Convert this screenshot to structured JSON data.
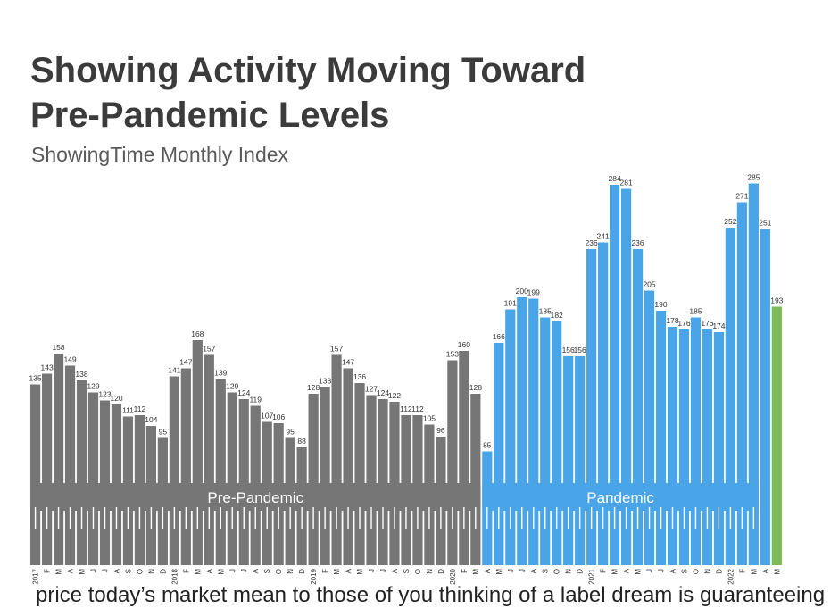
{
  "title_line1": "Showing Activity Moving Toward",
  "title_line2": "Pre-Pandemic Levels",
  "subtitle": "ShowingTime Monthly Index",
  "caption": "price today’s market mean to those of you thinking of a label dream is guaranteeing",
  "colors": {
    "pre": "#767676",
    "pandemic": "#4aa5e8",
    "latest": "#7dbb57"
  },
  "chart_data": {
    "type": "bar",
    "title": "Showing Activity Moving Toward Pre-Pandemic Levels",
    "subtitle": "ShowingTime Monthly Index",
    "categories": [
      "2017",
      "F",
      "M",
      "A",
      "M",
      "J",
      "J",
      "A",
      "S",
      "O",
      "N",
      "D",
      "2018",
      "F",
      "M",
      "A",
      "M",
      "J",
      "J",
      "A",
      "S",
      "O",
      "N",
      "D",
      "2019",
      "F",
      "M",
      "A",
      "M",
      "J",
      "J",
      "A",
      "S",
      "O",
      "N",
      "D",
      "2020",
      "F",
      "M",
      "A",
      "M",
      "J",
      "J",
      "A",
      "S",
      "O",
      "N",
      "D",
      "2021",
      "F",
      "M",
      "A",
      "M",
      "J",
      "J",
      "A",
      "S",
      "O",
      "N",
      "D",
      "2022",
      "F",
      "M",
      "A",
      "M"
    ],
    "values": [
      135,
      143,
      158,
      149,
      138,
      129,
      123,
      120,
      111,
      112,
      104,
      95,
      141,
      147,
      168,
      157,
      139,
      129,
      124,
      119,
      107,
      106,
      95,
      88,
      128,
      133,
      157,
      147,
      136,
      127,
      124,
      122,
      112,
      112,
      105,
      96,
      153,
      160,
      128,
      85,
      166,
      191,
      200,
      199,
      185,
      182,
      156,
      156,
      236,
      241,
      284,
      281,
      236,
      205,
      190,
      178,
      176,
      185,
      176,
      174,
      252,
      271,
      285,
      251,
      193
    ],
    "segments": [
      {
        "label": "Pre-Pandemic",
        "start": 0,
        "end": 38,
        "color": "#767676"
      },
      {
        "label": "Pandemic",
        "start": 39,
        "end": 62,
        "color": "#4aa5e8"
      },
      {
        "label": "",
        "start": 63,
        "end": 63,
        "color": "#4aa5e8"
      },
      {
        "label": "",
        "start": 64,
        "end": 64,
        "color": "#7dbb57"
      }
    ],
    "xlabel": "",
    "ylabel": "",
    "ylim": [
      0,
      300
    ],
    "grid": false,
    "legend": "none"
  }
}
